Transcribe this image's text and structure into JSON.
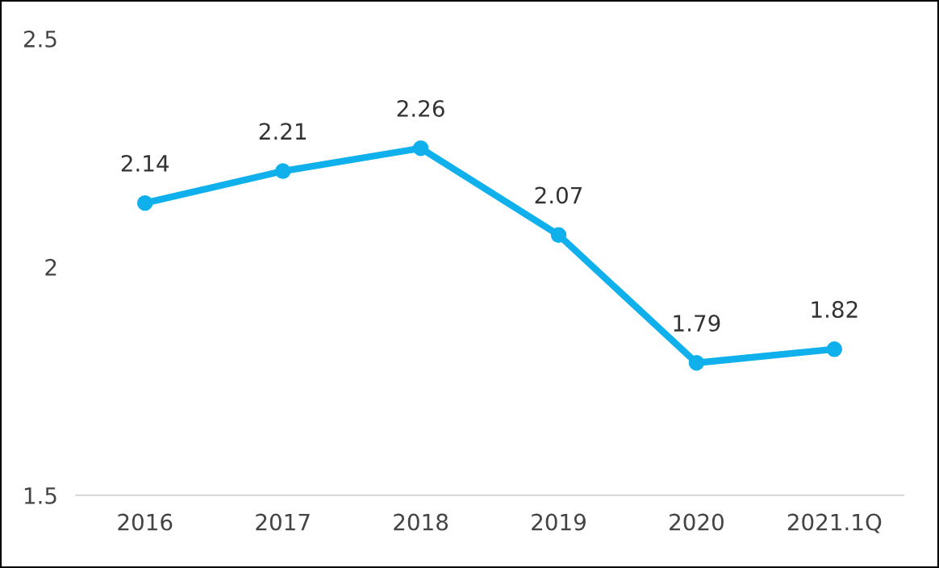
{
  "chart_data": {
    "type": "line",
    "categories": [
      "2016",
      "2017",
      "2018",
      "2019",
      "2020",
      "2021.1Q"
    ],
    "series": [
      {
        "color": "#0fb0ec",
        "values": [
          2.14,
          2.21,
          2.26,
          2.07,
          1.79,
          1.82
        ]
      }
    ],
    "ylim": [
      1.5,
      2.5
    ],
    "yticks": [
      1.5,
      2,
      2.5
    ],
    "grid": false,
    "legend": false,
    "marker": "circle",
    "line_style": "solid",
    "data_labels": true
  }
}
